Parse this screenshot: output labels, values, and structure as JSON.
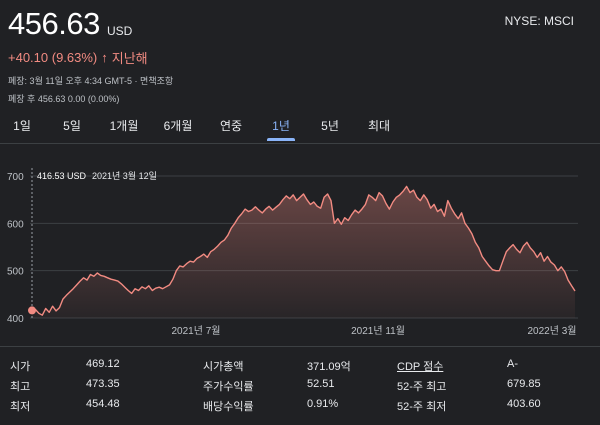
{
  "header": {
    "price": "456.63",
    "currency": "USD",
    "ticker": "NYSE: MSCI",
    "change_text": "+40.10 (9.63%)",
    "change_arrow": "↑",
    "period": "지난해",
    "close_info": "폐장: 3월 11일 오후 4:34 GMT-5 · 면책조항",
    "after_hours": "폐장 후 456.63 0.00 (0.00%)"
  },
  "tabs": [
    "1일",
    "5일",
    "1개월",
    "6개월",
    "연중",
    "1년",
    "5년",
    "최대"
  ],
  "active_tab": "1년",
  "tooltip": {
    "price": "416.53 USD",
    "date": "2021년 3월 12일"
  },
  "chart_data": {
    "type": "area",
    "yticks": [
      400,
      500,
      600,
      700
    ],
    "ylim": [
      400,
      700
    ],
    "xticks": [
      "2021년 7월",
      "2021년 11월",
      "2022년 3월"
    ],
    "series": [
      {
        "values": [
          416,
          418,
          410,
          406,
          420,
          412,
          425,
          415,
          422,
          440,
          448,
          455,
          462,
          470,
          478,
          485,
          480,
          492,
          488,
          495,
          490,
          488,
          485,
          482,
          480,
          478,
          472,
          465,
          458,
          452,
          462,
          458,
          466,
          462,
          468,
          458,
          463,
          465,
          462,
          466,
          470,
          482,
          500,
          510,
          508,
          515,
          520,
          518,
          526,
          530,
          535,
          528,
          540,
          545,
          552,
          560,
          565,
          575,
          590,
          600,
          612,
          620,
          630,
          625,
          628,
          635,
          628,
          622,
          630,
          636,
          628,
          634,
          640,
          650,
          658,
          652,
          660,
          648,
          655,
          662,
          650,
          640,
          645,
          636,
          632,
          655,
          662,
          648,
          600,
          610,
          598,
          612,
          606,
          618,
          628,
          622,
          630,
          640,
          660,
          655,
          648,
          665,
          658,
          642,
          630,
          645,
          655,
          660,
          668,
          678,
          665,
          670,
          655,
          648,
          660,
          650,
          632,
          640,
          625,
          630,
          615,
          648,
          632,
          620,
          610,
          622,
          600,
          590,
          578,
          560,
          548,
          530,
          520,
          510,
          502,
          500,
          500,
          520,
          540,
          548,
          555,
          545,
          538,
          552,
          560,
          548,
          540,
          528,
          538,
          520,
          530,
          518,
          512,
          500,
          508,
          498,
          480,
          468,
          457
        ]
      }
    ]
  },
  "stats": [
    {
      "label": "시가",
      "value": "469.12"
    },
    {
      "label": "최고",
      "value": "473.35"
    },
    {
      "label": "최저",
      "value": "454.48"
    },
    {
      "label": "시가총액",
      "value": "371.09억"
    },
    {
      "label": "주가수익률",
      "value": "52.51"
    },
    {
      "label": "배당수익률",
      "value": "0.91%"
    },
    {
      "label": "CDP 점수",
      "value": "A-"
    },
    {
      "label": "52-주 최고",
      "value": "679.85"
    },
    {
      "label": "52-주 최저",
      "value": "403.60"
    }
  ],
  "colors": {
    "background": "#202124",
    "line": "#f28b82",
    "positive_change": "#f28b82",
    "active_tab": "#8ab4f8"
  }
}
